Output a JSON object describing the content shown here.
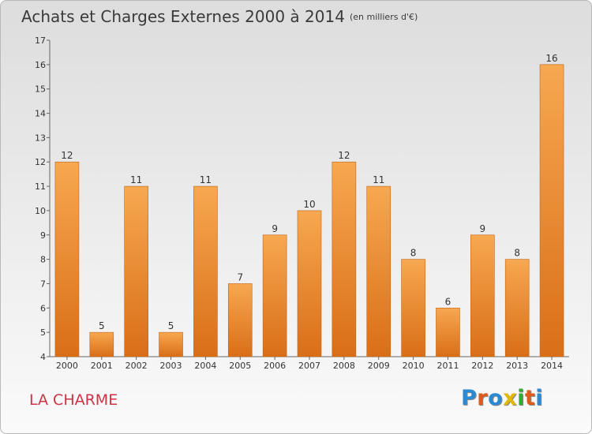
{
  "header": {
    "title": "Achats et Charges Externes 2000 à 2014",
    "unit": "(en milliers d'€)"
  },
  "footer": {
    "town": "LA CHARME",
    "logo": {
      "letters": [
        "P",
        "r",
        "o",
        "x",
        "i",
        "t",
        "i"
      ],
      "colors": [
        "#2a8ad4",
        "#e05a1c",
        "#2a8ad4",
        "#e0b800",
        "#33aa33",
        "#e05a1c",
        "#2a8ad4"
      ]
    }
  },
  "chart_data": {
    "type": "bar",
    "title": "Achats et Charges Externes 2000 à 2014",
    "categories": [
      "2000",
      "2001",
      "2002",
      "2003",
      "2004",
      "2005",
      "2006",
      "2007",
      "2008",
      "2009",
      "2010",
      "2011",
      "2012",
      "2013",
      "2014"
    ],
    "values": [
      12,
      5,
      11,
      5,
      11,
      7,
      9,
      10,
      12,
      11,
      8,
      6,
      9,
      8,
      16
    ],
    "ylim": [
      4,
      17
    ],
    "yticks": [
      4,
      5,
      6,
      7,
      8,
      9,
      10,
      11,
      12,
      13,
      14,
      15,
      16,
      17
    ],
    "grid": false,
    "bar_color_top": "#f7a850",
    "bar_color_bottom": "#d96e18"
  }
}
